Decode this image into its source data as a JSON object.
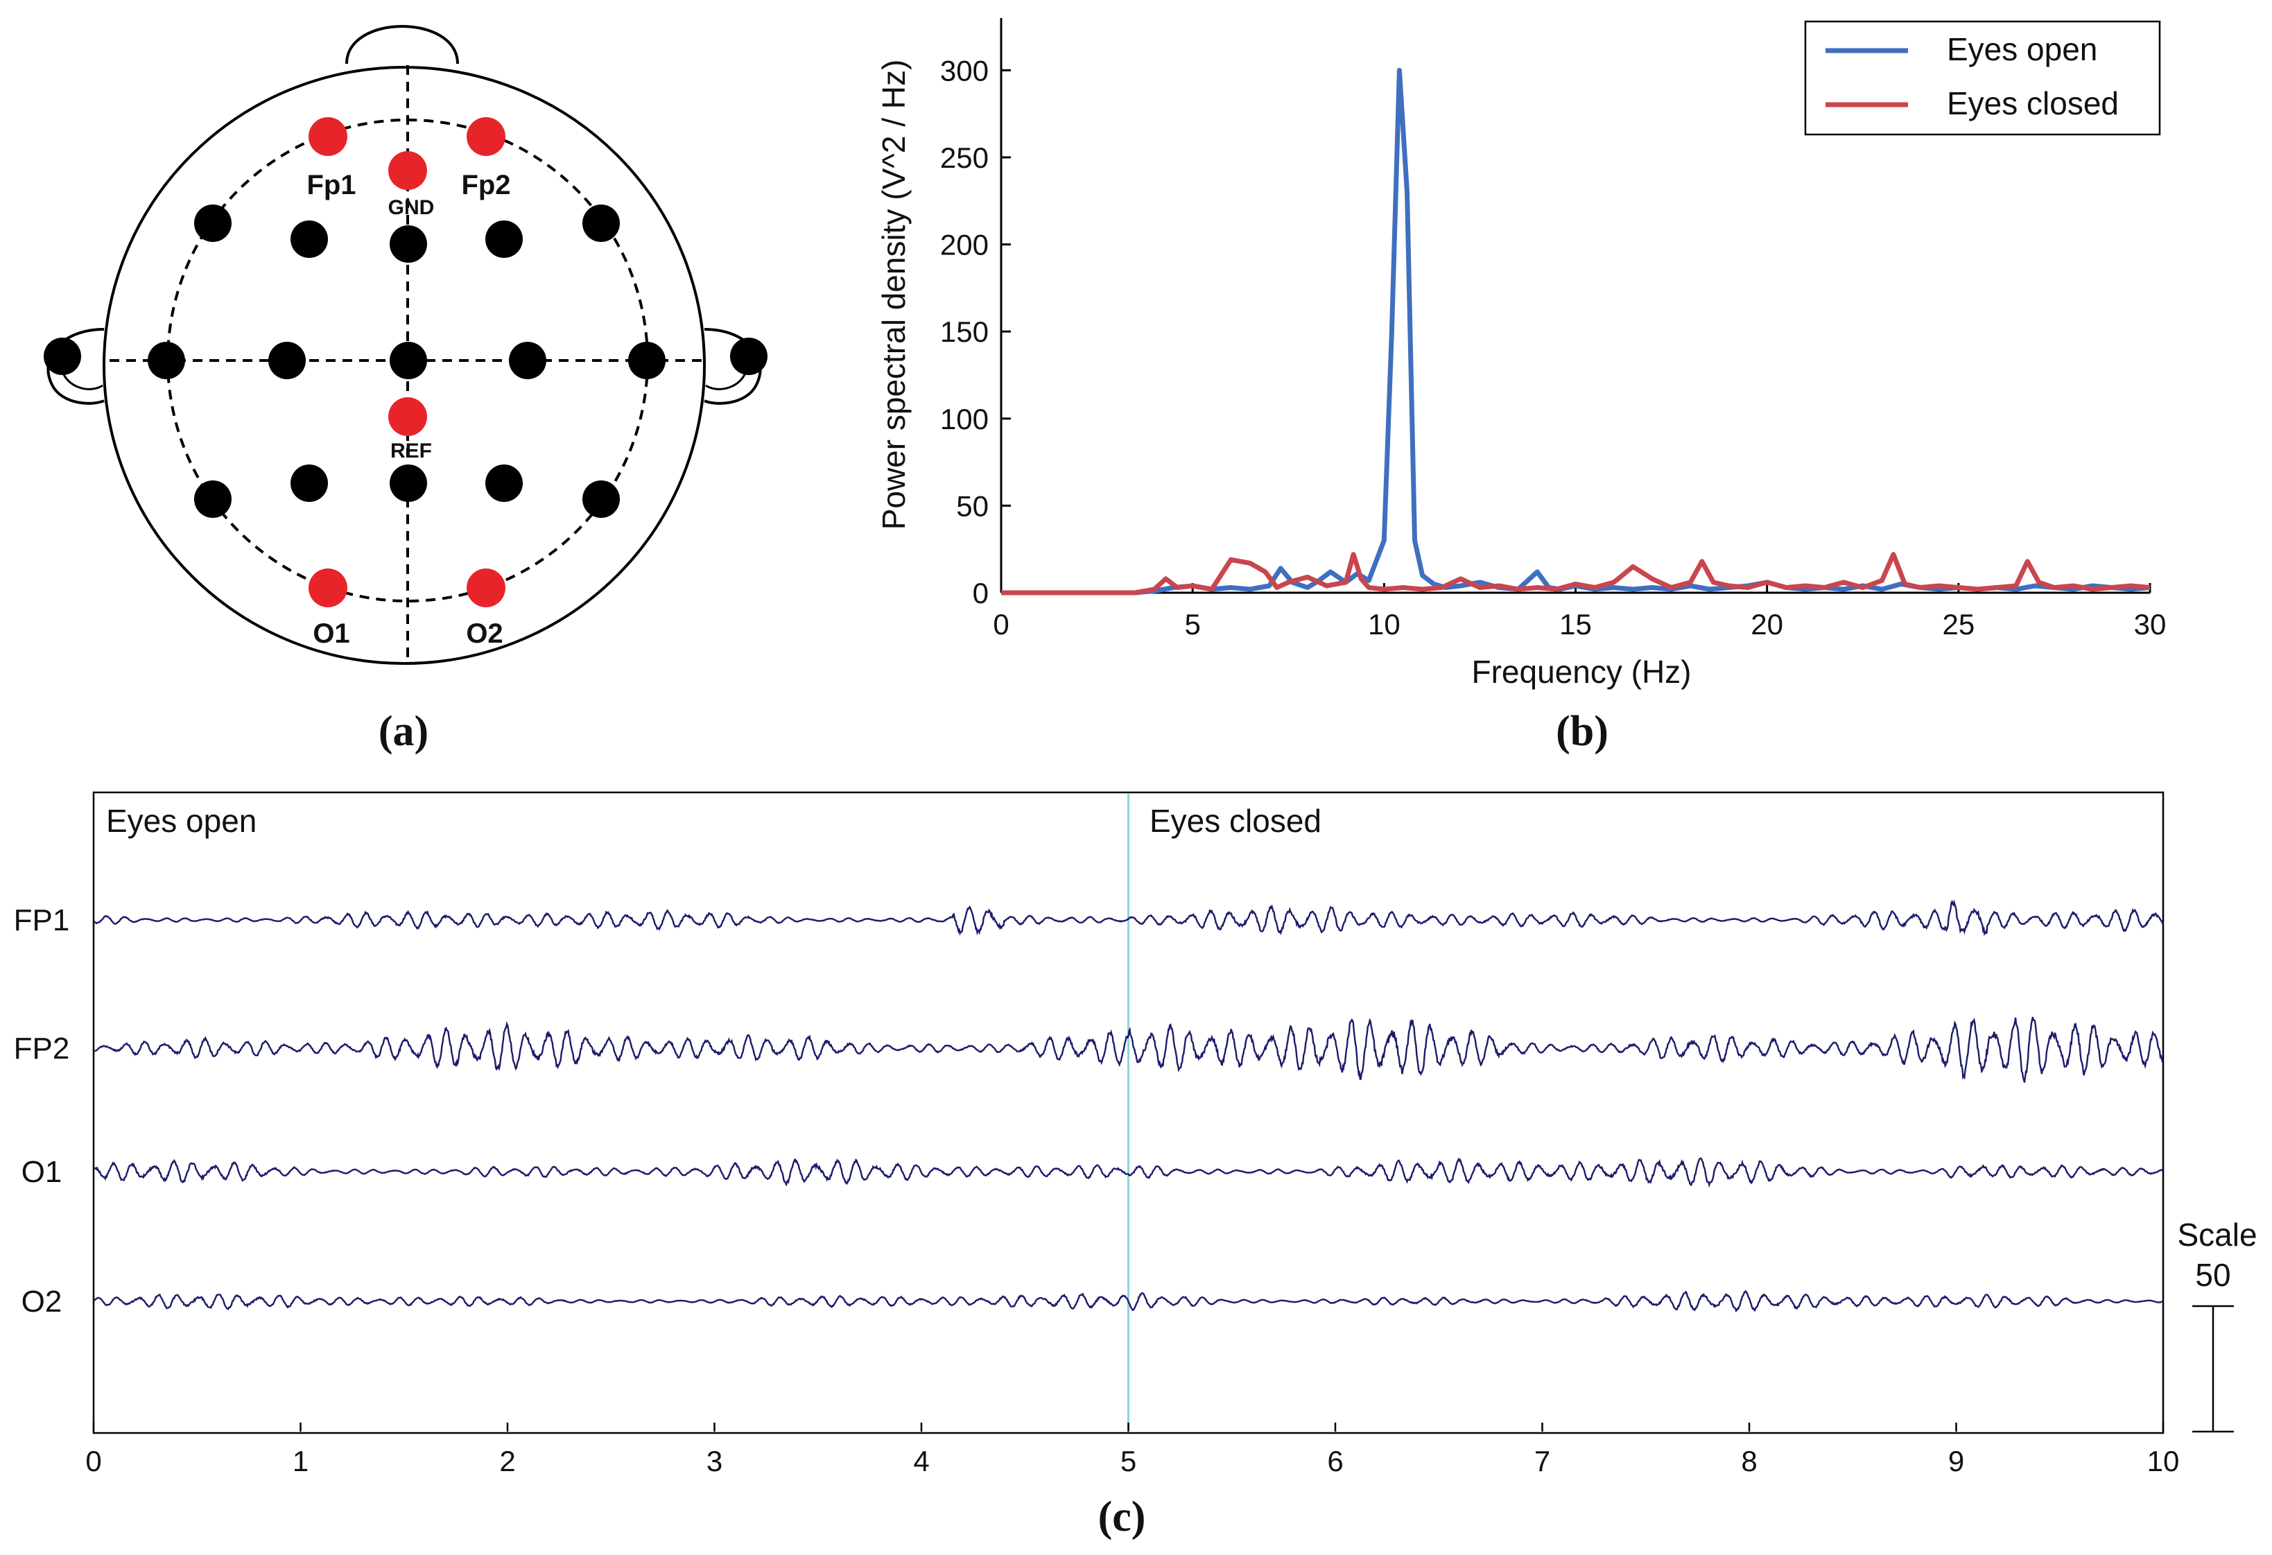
{
  "panel_a": {
    "caption": "(a)",
    "electrode_labels": {
      "fp1": "Fp1",
      "fp2": "Fp2",
      "gnd": "GND",
      "ref": "REF",
      "o1": "O1",
      "o2": "O2"
    },
    "colors": {
      "active": "#e8242b",
      "passive": "#000000"
    }
  },
  "panel_b": {
    "caption": "(b)"
  },
  "panel_c": {
    "caption": "(c)"
  },
  "chart_data": [
    {
      "type": "line",
      "title": "",
      "xlabel": "Frequency (Hz)",
      "ylabel": "Power spectral density (V^2 / Hz)",
      "xlim": [
        0,
        30
      ],
      "ylim": [
        0,
        330
      ],
      "xticks": [
        0,
        5,
        10,
        15,
        20,
        25,
        30
      ],
      "yticks": [
        0,
        50,
        100,
        150,
        200,
        250,
        300
      ],
      "legend": {
        "position": "top-right",
        "entries": [
          "Eyes open",
          "Eyes closed"
        ]
      },
      "series": [
        {
          "name": "Eyes open",
          "color": "#3f6fbf",
          "x": [
            0,
            3.5,
            4,
            4.5,
            5,
            5.5,
            6,
            6.5,
            7,
            7.3,
            7.6,
            8,
            8.3,
            8.6,
            9,
            9.3,
            9.6,
            10,
            10.2,
            10.4,
            10.6,
            10.8,
            11,
            11.3,
            11.6,
            12,
            12.5,
            13,
            13.5,
            14,
            14.3,
            14.6,
            15,
            15.5,
            16,
            16.5,
            17,
            17.5,
            18,
            18.5,
            19,
            19.5,
            20,
            20.5,
            21,
            21.5,
            22,
            22.5,
            23,
            23.5,
            24,
            24.5,
            25,
            25.5,
            26,
            26.5,
            27,
            27.5,
            28,
            28.5,
            29,
            29.5,
            30
          ],
          "y": [
            0,
            0,
            1,
            3,
            4,
            2,
            3,
            2,
            4,
            14,
            6,
            3,
            7,
            12,
            6,
            11,
            7,
            30,
            150,
            300,
            230,
            30,
            10,
            5,
            3,
            4,
            6,
            3,
            2,
            12,
            3,
            2,
            4,
            2,
            3,
            2,
            3,
            2,
            4,
            2,
            3,
            4,
            6,
            3,
            2,
            3,
            2,
            4,
            2,
            5,
            3,
            2,
            3,
            2,
            3,
            2,
            4,
            3,
            2,
            4,
            3,
            2,
            3
          ]
        },
        {
          "name": "Eyes closed",
          "color": "#c9464e",
          "x": [
            0,
            3.5,
            4,
            4.3,
            4.6,
            5,
            5.5,
            6,
            6.5,
            6.9,
            7.2,
            7.5,
            8,
            8.5,
            9,
            9.2,
            9.4,
            9.6,
            10,
            10.5,
            11,
            11.5,
            12,
            12.5,
            13,
            13.5,
            14,
            14.5,
            15,
            15.5,
            16,
            16.5,
            17,
            17.5,
            18,
            18.3,
            18.6,
            19,
            19.5,
            20,
            20.5,
            21,
            21.5,
            22,
            22.5,
            23,
            23.3,
            23.6,
            24,
            24.5,
            25,
            25.5,
            26,
            26.5,
            26.8,
            27.1,
            27.5,
            28,
            28.5,
            29,
            29.5,
            30
          ],
          "y": [
            0,
            0,
            2,
            8,
            3,
            4,
            2,
            19,
            17,
            12,
            3,
            6,
            9,
            4,
            6,
            22,
            8,
            3,
            2,
            3,
            2,
            3,
            8,
            3,
            4,
            2,
            3,
            2,
            5,
            3,
            6,
            15,
            8,
            3,
            6,
            18,
            6,
            4,
            3,
            6,
            3,
            4,
            3,
            6,
            3,
            7,
            22,
            5,
            3,
            4,
            3,
            2,
            3,
            4,
            18,
            6,
            3,
            4,
            2,
            3,
            4,
            3
          ]
        }
      ]
    },
    {
      "type": "line",
      "title": "",
      "xlabel": "",
      "ylabel": "",
      "xlim": [
        0,
        10
      ],
      "xticks": [
        0,
        1,
        2,
        3,
        4,
        5,
        6,
        7,
        8,
        9,
        10
      ],
      "annotations": [
        {
          "text": "Eyes open",
          "x": 0
        },
        {
          "text": "Eyes closed",
          "x": 5
        }
      ],
      "marker_x": 5,
      "channels": [
        "FP1",
        "FP2",
        "O1",
        "O2"
      ],
      "channel_amplitude": [
        12,
        26,
        14,
        9
      ],
      "scale": {
        "label": "Scale",
        "value": "50"
      },
      "trace_color": "#1c1c6b",
      "marker_color": "#8fd6d6"
    }
  ]
}
